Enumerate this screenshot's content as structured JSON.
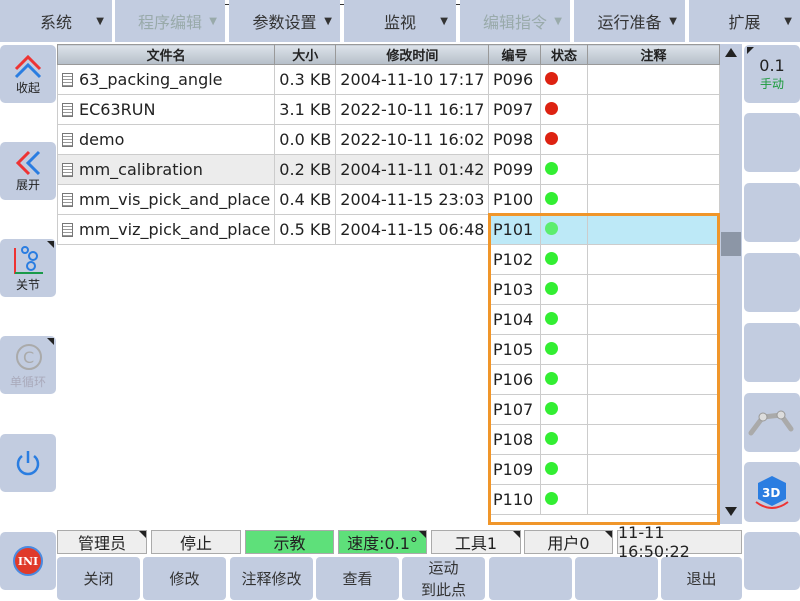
{
  "menu": [
    {
      "label": "系统",
      "disabled": false
    },
    {
      "label": "程序编辑",
      "disabled": true
    },
    {
      "label": "参数设置",
      "disabled": false
    },
    {
      "label": "监视",
      "disabled": false
    },
    {
      "label": "编辑指令",
      "disabled": true
    },
    {
      "label": "运行准备",
      "disabled": false
    },
    {
      "label": "扩展",
      "disabled": false
    }
  ],
  "left_sidebar": {
    "collapse": "收起",
    "expand": "展开",
    "joint": "关节",
    "single_cycle": "单循环"
  },
  "right_sidebar": {
    "speed": "0.1",
    "mode": "手动"
  },
  "file_table": {
    "headers": [
      "文件名",
      "大小",
      "修改时间"
    ],
    "rows": [
      [
        "63_packing_angle",
        "0.3 KB",
        "2004-11-10 17:17"
      ],
      [
        "EC63RUN",
        "3.1 KB",
        "2022-10-11 16:17"
      ],
      [
        "demo",
        "0.0 KB",
        "2022-10-11 16:02"
      ],
      [
        "mm_calibration",
        "0.2 KB",
        "2004-11-11 01:42"
      ],
      [
        "mm_vis_pick_and_place",
        "0.4 KB",
        "2004-11-15 23:03"
      ],
      [
        "mm_viz_pick_and_place",
        "0.5 KB",
        "2004-11-15 06:48"
      ]
    ],
    "selected_index": 3
  },
  "point_table": {
    "headers": [
      "编号",
      "状态",
      "注释"
    ],
    "rows": [
      {
        "id": "P096",
        "status": "red"
      },
      {
        "id": "P097",
        "status": "red"
      },
      {
        "id": "P098",
        "status": "red"
      },
      {
        "id": "P099",
        "status": "green"
      },
      {
        "id": "P100",
        "status": "green"
      },
      {
        "id": "P101",
        "status": "green"
      },
      {
        "id": "P102",
        "status": "green"
      },
      {
        "id": "P103",
        "status": "green"
      },
      {
        "id": "P104",
        "status": "green"
      },
      {
        "id": "P105",
        "status": "green"
      },
      {
        "id": "P106",
        "status": "green"
      },
      {
        "id": "P107",
        "status": "green"
      },
      {
        "id": "P108",
        "status": "green"
      },
      {
        "id": "P109",
        "status": "green"
      },
      {
        "id": "P110",
        "status": "green"
      }
    ],
    "selected_id": "P101"
  },
  "colors": {
    "red": "#dd2211",
    "green": "#33ee33",
    "highlight_border": "#f0962a",
    "selected_row": "#bde9f7"
  },
  "status_bar": {
    "user": "管理员",
    "state": "停止",
    "mode": "示教",
    "speed": "速度:0.1°",
    "tool": "工具1",
    "user_frame": "用户0",
    "datetime": "11-11 16:50:22"
  },
  "bottom_buttons": {
    "close": "关闭",
    "modify": "修改",
    "comment_modify": "注释修改",
    "view": "查看",
    "move_line1": "运动",
    "move_line2": "到此点",
    "exit": "退出"
  },
  "ini_label": "INI",
  "label_3d": "3D"
}
